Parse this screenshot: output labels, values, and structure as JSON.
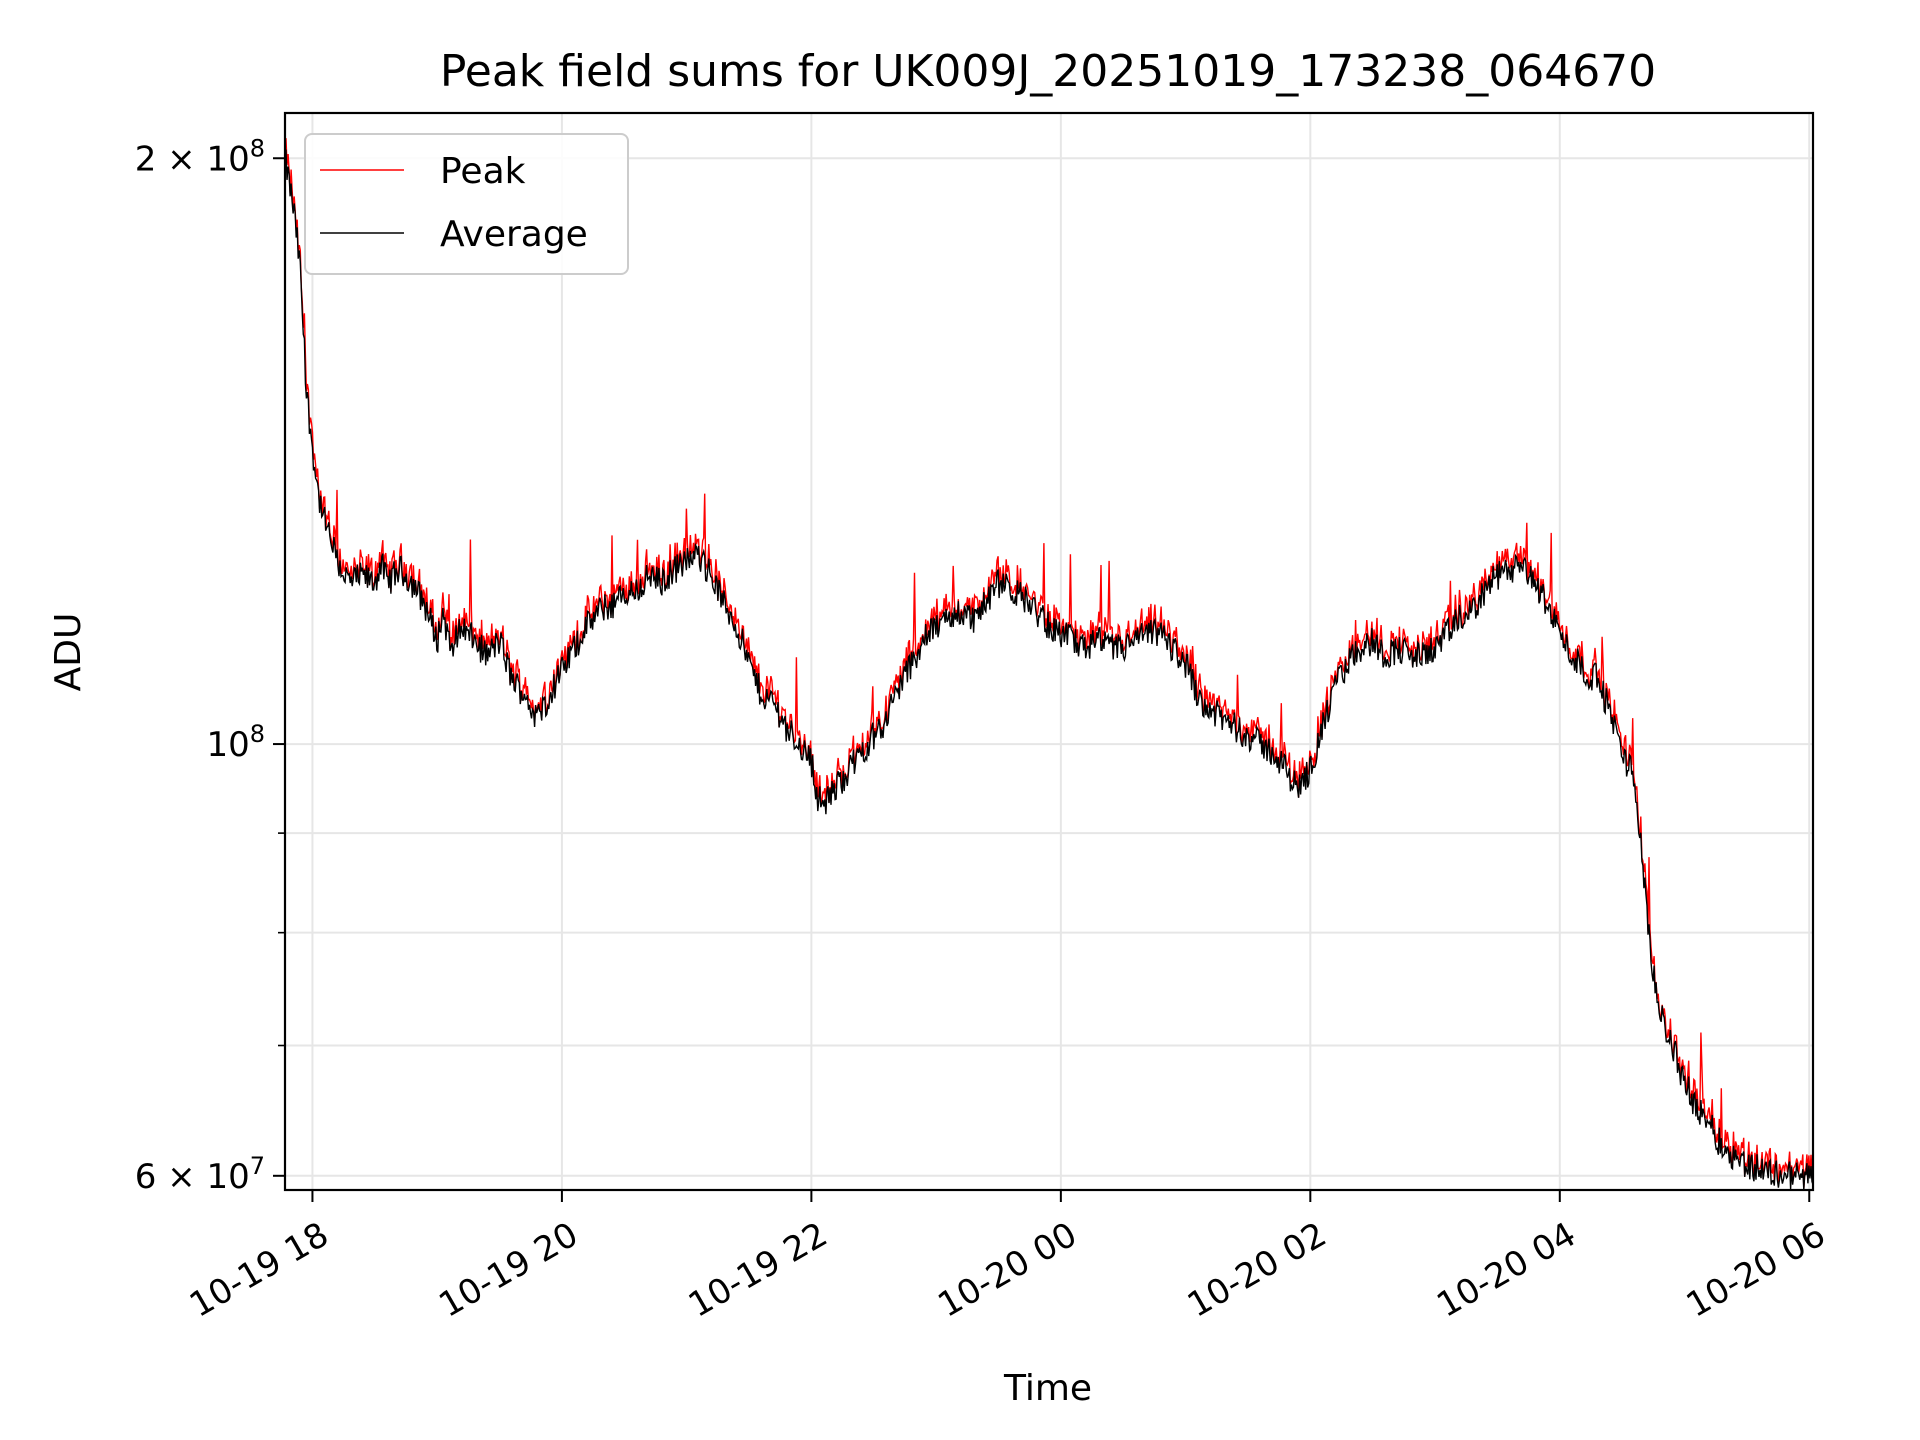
{
  "chart_data": {
    "type": "line",
    "title": "Peak field sums for UK009J_20251019_173238_064670",
    "xlabel": "Time",
    "ylabel": "ADU",
    "yscale": "log",
    "ylim": [
      59000000,
      211000000
    ],
    "xlim_hours": [
      -0.22,
      12.03
    ],
    "grid": true,
    "legend": {
      "position": "top-left",
      "entries": [
        "Peak",
        "Average"
      ]
    },
    "x_ticks": [
      {
        "h": 0,
        "label": "10-19 18"
      },
      {
        "h": 2,
        "label": "10-19 20"
      },
      {
        "h": 4,
        "label": "10-19 22"
      },
      {
        "h": 6,
        "label": "10-20 00"
      },
      {
        "h": 8,
        "label": "10-20 02"
      },
      {
        "h": 10,
        "label": "10-20 04"
      },
      {
        "h": 12,
        "label": "10-20 06"
      }
    ],
    "y_ticks_major": [
      {
        "v": 60000000,
        "label": "6 × 10⁷",
        "coef": "6 × 10",
        "exp": "7"
      },
      {
        "v": 100000000,
        "label": "10⁸",
        "coef": "10",
        "exp": "8"
      },
      {
        "v": 200000000,
        "label": "2 × 10⁸",
        "coef": "2 × 10",
        "exp": "8"
      }
    ],
    "y_ticks_minor": [
      70000000,
      80000000,
      90000000
    ],
    "x_unit": "hours since 2025-10-19 18:00",
    "series": [
      {
        "name": "Average",
        "color": "#000000",
        "points": [
          [
            -0.22,
            200
          ],
          [
            -0.15,
            188
          ],
          [
            -0.1,
            176
          ],
          [
            -0.05,
            152
          ],
          [
            0.0,
            142
          ],
          [
            0.05,
            134
          ],
          [
            0.1,
            130
          ],
          [
            0.2,
            124
          ],
          [
            0.3,
            121
          ],
          [
            0.4,
            122
          ],
          [
            0.5,
            121
          ],
          [
            0.55,
            124
          ],
          [
            0.6,
            121
          ],
          [
            0.7,
            123
          ],
          [
            0.8,
            121
          ],
          [
            0.9,
            118
          ],
          [
            1.0,
            113
          ],
          [
            1.05,
            117
          ],
          [
            1.1,
            112
          ],
          [
            1.2,
            115
          ],
          [
            1.3,
            113
          ],
          [
            1.4,
            111
          ],
          [
            1.5,
            113
          ],
          [
            1.6,
            108
          ],
          [
            1.7,
            106
          ],
          [
            1.8,
            103
          ],
          [
            1.9,
            106
          ],
          [
            2.0,
            109
          ],
          [
            2.1,
            112
          ],
          [
            2.2,
            115
          ],
          [
            2.3,
            117
          ],
          [
            2.4,
            118
          ],
          [
            2.5,
            119
          ],
          [
            2.6,
            120
          ],
          [
            2.7,
            122
          ],
          [
            2.8,
            121
          ],
          [
            2.9,
            123
          ],
          [
            3.0,
            124
          ],
          [
            3.1,
            125
          ],
          [
            3.2,
            122
          ],
          [
            3.3,
            118
          ],
          [
            3.4,
            115
          ],
          [
            3.5,
            110
          ],
          [
            3.6,
            106
          ],
          [
            3.7,
            105
          ],
          [
            3.8,
            102
          ],
          [
            3.9,
            100
          ],
          [
            4.0,
            98
          ],
          [
            4.05,
            94
          ],
          [
            4.1,
            93
          ],
          [
            4.2,
            95
          ],
          [
            4.3,
            97
          ],
          [
            4.4,
            99
          ],
          [
            4.5,
            101
          ],
          [
            4.6,
            103
          ],
          [
            4.7,
            107
          ],
          [
            4.8,
            110
          ],
          [
            4.9,
            113
          ],
          [
            5.0,
            115
          ],
          [
            5.1,
            116
          ],
          [
            5.2,
            117
          ],
          [
            5.3,
            116
          ],
          [
            5.4,
            118
          ],
          [
            5.5,
            121
          ],
          [
            5.6,
            120
          ],
          [
            5.7,
            119
          ],
          [
            5.8,
            117
          ],
          [
            5.9,
            115
          ],
          [
            6.0,
            114
          ],
          [
            6.1,
            113
          ],
          [
            6.2,
            112
          ],
          [
            6.3,
            113
          ],
          [
            6.4,
            112
          ],
          [
            6.5,
            112
          ],
          [
            6.6,
            113
          ],
          [
            6.7,
            114
          ],
          [
            6.8,
            114
          ],
          [
            6.9,
            112
          ],
          [
            7.0,
            110
          ],
          [
            7.1,
            106
          ],
          [
            7.2,
            104
          ],
          [
            7.3,
            103
          ],
          [
            7.4,
            102
          ],
          [
            7.5,
            101
          ],
          [
            7.6,
            100
          ],
          [
            7.7,
            99
          ],
          [
            7.8,
            97
          ],
          [
            7.9,
            95
          ],
          [
            8.0,
            97
          ],
          [
            8.1,
            102
          ],
          [
            8.2,
            107
          ],
          [
            8.3,
            110
          ],
          [
            8.4,
            112
          ],
          [
            8.5,
            113
          ],
          [
            8.6,
            111
          ],
          [
            8.7,
            112
          ],
          [
            8.8,
            111
          ],
          [
            8.9,
            111
          ],
          [
            9.0,
            112
          ],
          [
            9.1,
            114
          ],
          [
            9.2,
            116
          ],
          [
            9.3,
            117
          ],
          [
            9.4,
            120
          ],
          [
            9.5,
            122
          ],
          [
            9.6,
            123
          ],
          [
            9.7,
            123
          ],
          [
            9.8,
            121
          ],
          [
            9.9,
            118
          ],
          [
            10.0,
            114
          ],
          [
            10.1,
            111
          ],
          [
            10.2,
            109
          ],
          [
            10.3,
            108
          ],
          [
            10.4,
            104
          ],
          [
            10.5,
            99
          ],
          [
            10.6,
            96
          ],
          [
            10.7,
            82
          ],
          [
            10.75,
            76
          ],
          [
            10.8,
            73
          ],
          [
            10.9,
            70
          ],
          [
            11.0,
            67
          ],
          [
            11.1,
            65
          ],
          [
            11.2,
            64
          ],
          [
            11.3,
            62
          ],
          [
            11.4,
            61.5
          ],
          [
            11.5,
            60.8
          ],
          [
            11.6,
            60.5
          ],
          [
            11.7,
            60.2
          ],
          [
            11.8,
            60.1
          ],
          [
            11.9,
            60.0
          ],
          [
            12.03,
            60.0
          ]
        ]
      },
      {
        "name": "Peak",
        "color": "#ff0000",
        "points": []
      }
    ]
  }
}
